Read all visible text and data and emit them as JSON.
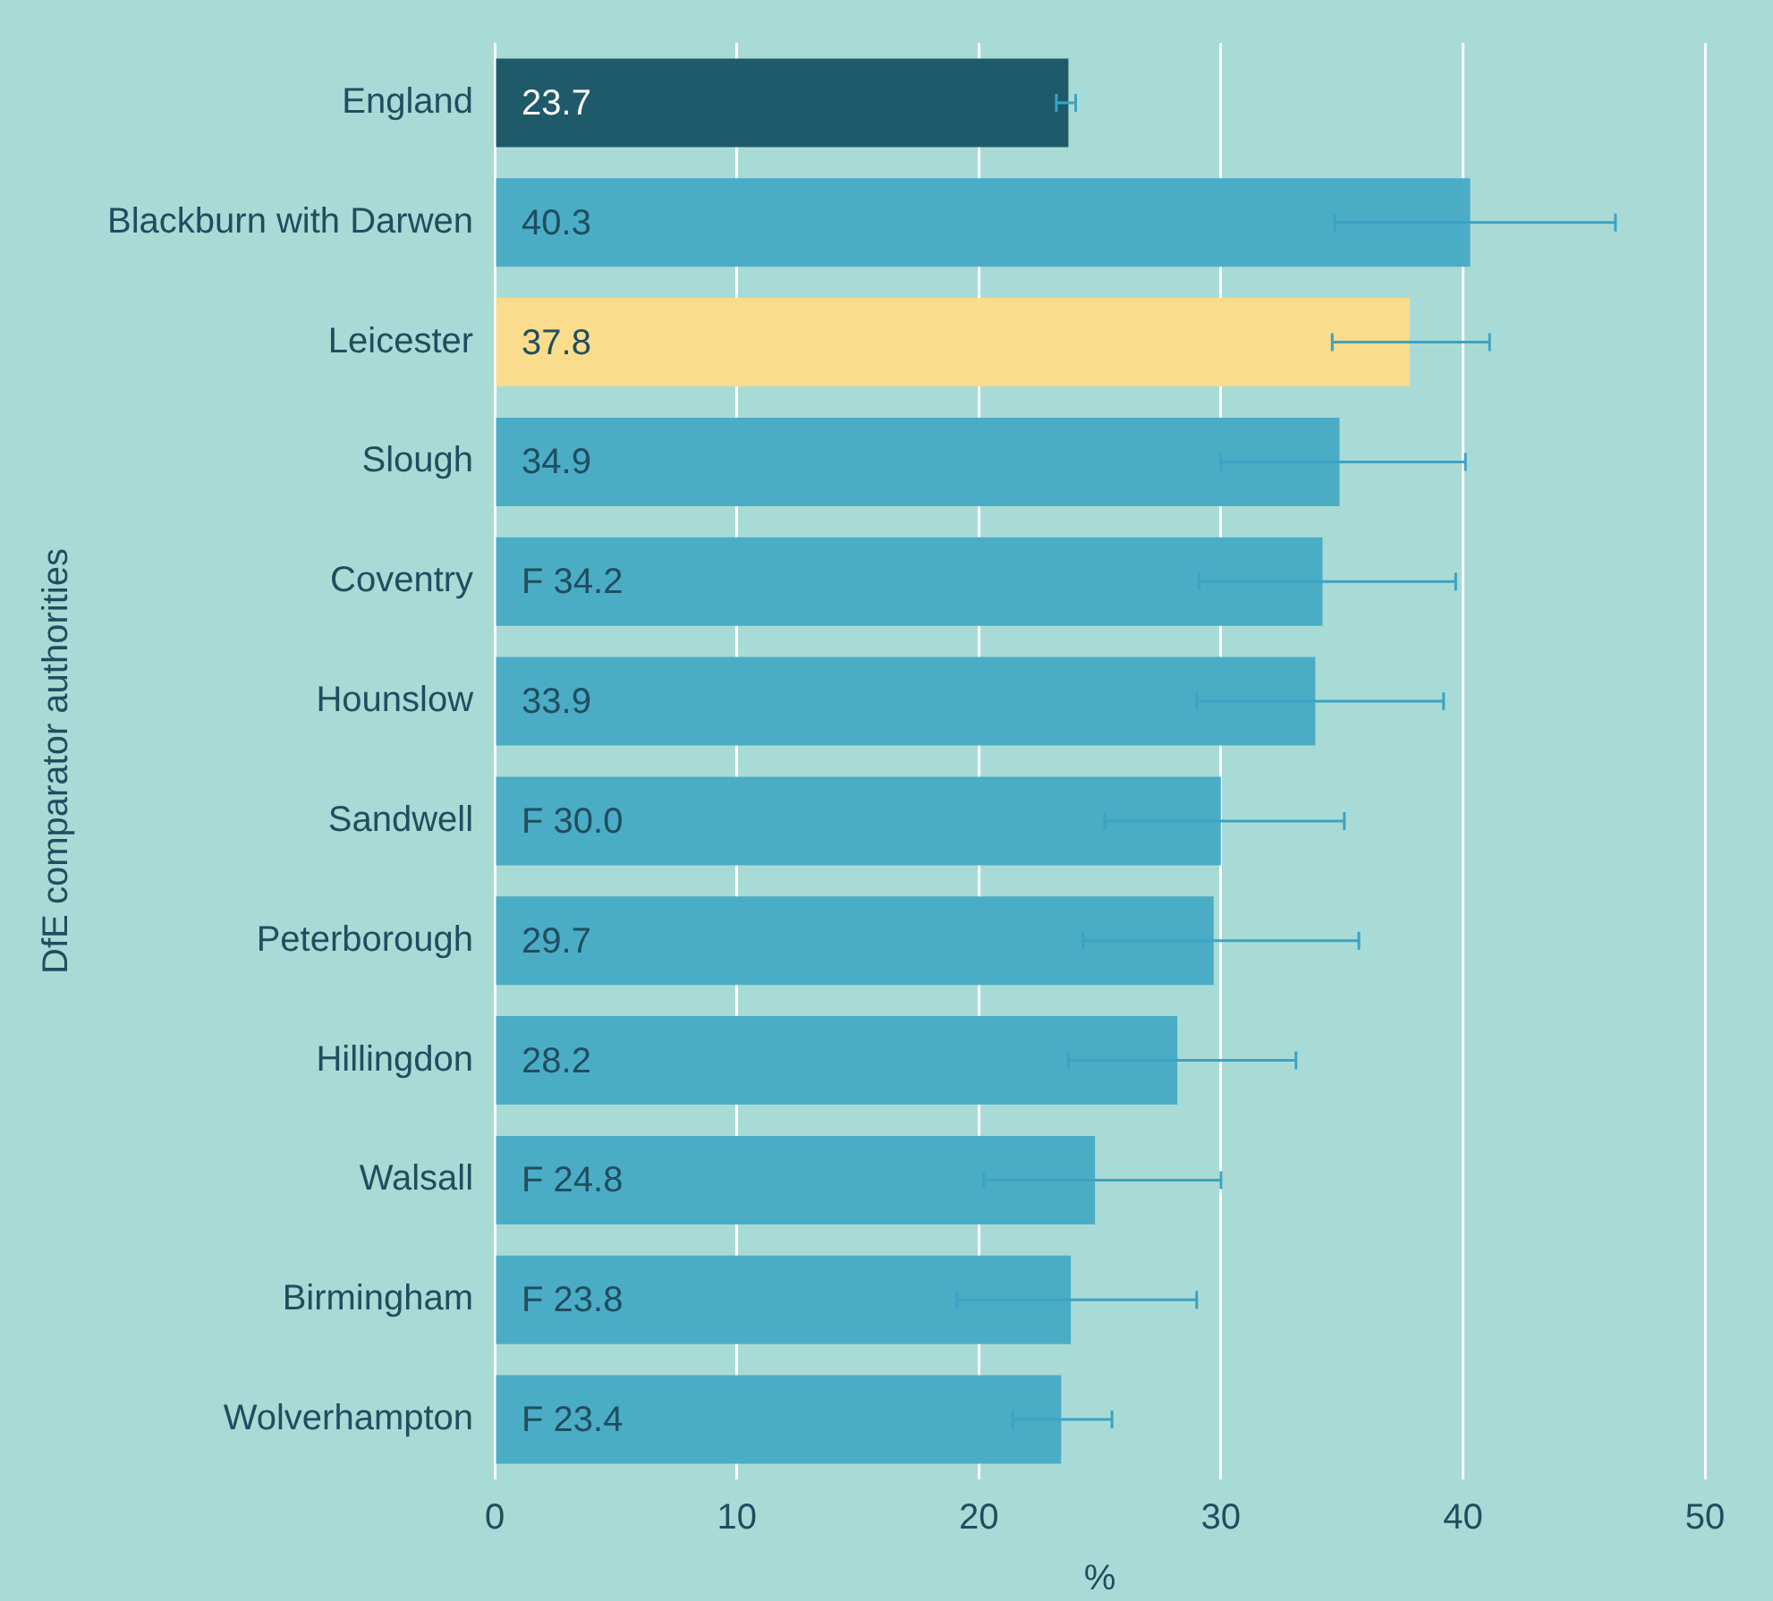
{
  "chart_data": {
    "type": "bar",
    "orientation": "horizontal",
    "ylabel": "DfE comparator authorities",
    "xlabel": "%",
    "categories": [
      "England",
      "Blackburn with Darwen",
      "Leicester",
      "Slough",
      "Coventry",
      "Hounslow",
      "Sandwell",
      "Peterborough",
      "Hillingdon",
      "Walsall",
      "Birmingham",
      "Wolverhampton"
    ],
    "values": [
      23.7,
      40.3,
      37.8,
      34.9,
      34.2,
      33.9,
      30.0,
      29.7,
      28.2,
      24.8,
      23.8,
      23.4
    ],
    "colors": [
      "#1f5a6a",
      "#4bacc6",
      "#f9dc8c",
      "#4bacc6",
      "#4bacc6",
      "#4bacc6",
      "#4bacc6",
      "#4bacc6",
      "#4bacc6",
      "#4bacc6",
      "#4bacc6",
      "#4bacc6"
    ],
    "value_labels": [
      "23.7",
      "40.3",
      "37.8",
      "34.9",
      "F 34.2",
      "33.9",
      "F 30.0",
      "29.7",
      "28.2",
      "F 24.8",
      "F 23.8",
      "F 23.4"
    ],
    "errors": [
      [
        23.2,
        24.0
      ],
      [
        34.7,
        46.3
      ],
      [
        34.6,
        41.1
      ],
      [
        30.0,
        40.1
      ],
      [
        29.1,
        39.7
      ],
      [
        29.0,
        39.2
      ],
      [
        25.2,
        35.1
      ],
      [
        24.3,
        35.7
      ],
      [
        23.7,
        33.1
      ],
      [
        20.2,
        30.0
      ],
      [
        19.1,
        29.0
      ],
      [
        21.4,
        25.5
      ]
    ],
    "xlim": [
      0,
      50
    ],
    "xticks": [
      0,
      10,
      20,
      30,
      40,
      50
    ],
    "grid": "x",
    "legend": false
  }
}
